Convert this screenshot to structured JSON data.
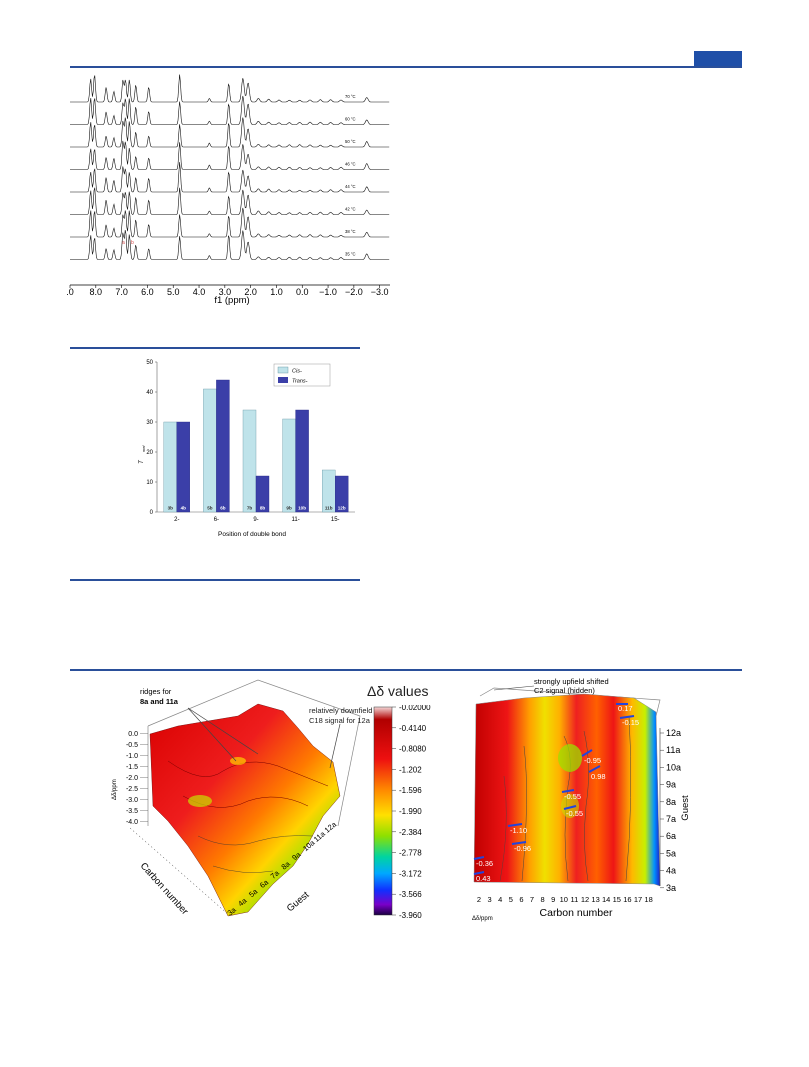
{
  "nmr_figure": {
    "xlabel": "f1 (ppm)",
    "xticks": [
      ".0",
      "8.0",
      "7.0",
      "6.0",
      "5.0",
      "4.0",
      "3.0",
      "2.0",
      "1.0",
      "0.0",
      "−1.0",
      "−2.0",
      "−3.0"
    ],
    "temperatures": [
      "70 °C",
      "60 °C",
      "50 °C",
      "46 °C",
      "44 °C",
      "42 °C",
      "38 °C",
      "35 °C"
    ],
    "marker_letters": [
      "a",
      "b"
    ]
  },
  "bar_figure": {
    "xlabel": "Position of double bond",
    "ylabel": "T",
    "ylabel_sub": "mel",
    "legend": [
      "Cis-",
      "Trans-"
    ]
  },
  "surface_left": {
    "zlabel": "Δδ/ppm",
    "xlabel": "Carbon number",
    "ylabel": "Guest",
    "zticks": [
      "0.0",
      "-0.5",
      "-1.0",
      "-1.5",
      "-2.0",
      "-2.5",
      "-3.0",
      "-3.5",
      "-4.0"
    ],
    "guest_ticks": [
      "3a",
      "4a",
      "5a",
      "6a",
      "7a",
      "8a",
      "9a",
      "10a",
      "11a",
      "12a"
    ],
    "annot_ridges_line1": "ridges for",
    "annot_ridges_bold": "8a and 11a",
    "annot_c18_line1": "relatively downfield",
    "annot_c18_line2": "C18 signal for 12a"
  },
  "colorbar": {
    "title": "Δδ values",
    "ticks": [
      "-0.02000",
      "-0.4140",
      "-0.8080",
      "-1.202",
      "-1.596",
      "-1.990",
      "-2.384",
      "-2.778",
      "-3.172",
      "-3.566",
      "-3.960"
    ]
  },
  "surface_right": {
    "xlabel": "Carbon number",
    "ylabel": "Guest",
    "zlabel": "Δδ/ppm",
    "xticks": [
      "2",
      "3",
      "4",
      "5",
      "6",
      "7",
      "8",
      "9",
      "10",
      "11",
      "12",
      "13",
      "14",
      "15",
      "16",
      "17",
      "18"
    ],
    "guest_ticks": [
      "12a",
      "11a",
      "10a",
      "9a",
      "8a",
      "7a",
      "6a",
      "5a",
      "4a",
      "3a"
    ],
    "annot_line1": "strongly upfield shifted",
    "annot_line2": "C2 signal (hidden)",
    "value_labels": [
      "0.17",
      "-0.15",
      "-0.95",
      "0.98",
      "-0.55",
      "-0.55",
      "-1.10",
      "-0.96",
      "-0.36",
      "0.43"
    ]
  },
  "chart_data": [
    {
      "type": "bar",
      "categories": [
        "2-",
        "6-",
        "9-",
        "11-",
        "15-"
      ],
      "series": [
        {
          "name": "Cis-",
          "values": [
            30,
            41,
            34,
            31,
            14
          ],
          "labels": [
            "3b",
            "5b",
            "7b",
            "9b",
            "11b"
          ],
          "color": "#bfe3ea"
        },
        {
          "name": "Trans-",
          "values": [
            30,
            44,
            12,
            34,
            12
          ],
          "labels": [
            "4b",
            "6b",
            "8b",
            "10b",
            "12b"
          ],
          "color": "#3b3fa8"
        }
      ],
      "xlabel": "Position of double bond",
      "ylabel": "T mel",
      "ylim": [
        0,
        50
      ],
      "yticks": [
        0,
        10,
        20,
        30,
        40,
        50
      ],
      "legend": "top-right"
    }
  ],
  "colors": {
    "accent": "#2a4f9a",
    "tag": "#1f4fa8"
  }
}
